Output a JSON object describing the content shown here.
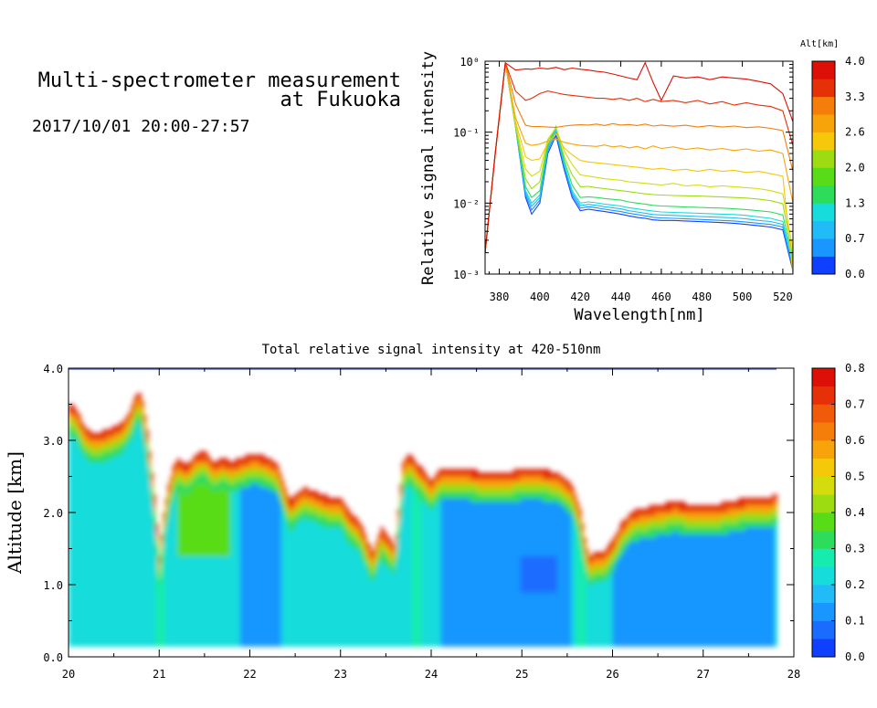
{
  "header": {
    "title_line1": "Multi-spectrometer measurement",
    "title_line2": "at Fukuoka",
    "datetime": "2017/10/01 20:00-27:57"
  },
  "colors": {
    "cmap": [
      "#1040ff",
      "#1a6cff",
      "#1996ff",
      "#21bcf7",
      "#17dcdc",
      "#16ecae",
      "#2edc5c",
      "#58dc18",
      "#9ddc10",
      "#d4dc0e",
      "#f5c80a",
      "#f7a40a",
      "#f57d0a",
      "#f05a0a",
      "#e63008",
      "#dc1006"
    ]
  },
  "chart_data": [
    {
      "type": "line",
      "xlabel": "Wavelength[nm]",
      "ylabel": "Relative signal intensity",
      "xlim": [
        373,
        525
      ],
      "ylim": [
        0.001,
        1
      ],
      "yscale": "log",
      "x_ticks": [
        380,
        400,
        420,
        440,
        460,
        480,
        500,
        520
      ],
      "y_tick_labels": [
        "10⁰",
        "10⁻¹",
        "10⁻²",
        "10⁻³"
      ],
      "colorbar": {
        "title": "Alt[km]",
        "tick_labels": [
          "4.0",
          "3.3",
          "2.6",
          "2.0",
          "1.3",
          "0.7",
          "0.0"
        ],
        "range": [
          0,
          4
        ]
      },
      "x": [
        373,
        378,
        383,
        388,
        393,
        396,
        400,
        404,
        408,
        412,
        416,
        420,
        424,
        428,
        432,
        436,
        440,
        444,
        448,
        452,
        456,
        460,
        466,
        472,
        478,
        484,
        490,
        496,
        502,
        508,
        514,
        520,
        525
      ],
      "series": [
        {
          "alt": 0.2,
          "values": [
            0.002,
            0.05,
            0.95,
            0.12,
            0.012,
            0.007,
            0.01,
            0.05,
            0.09,
            0.03,
            0.012,
            0.0078,
            0.0082,
            0.0079,
            0.0076,
            0.0073,
            0.007,
            0.0066,
            0.0063,
            0.0061,
            0.0058,
            0.0057,
            0.0057,
            0.0056,
            0.0055,
            0.0054,
            0.0053,
            0.0052,
            0.005,
            0.0048,
            0.0046,
            0.0042,
            0.0011
          ]
        },
        {
          "alt": 0.5,
          "values": [
            0.002,
            0.05,
            0.95,
            0.12,
            0.013,
            0.008,
            0.011,
            0.055,
            0.1,
            0.033,
            0.013,
            0.0085,
            0.0089,
            0.0086,
            0.0082,
            0.0079,
            0.0076,
            0.0072,
            0.0069,
            0.0066,
            0.0063,
            0.0062,
            0.0061,
            0.006,
            0.0059,
            0.0058,
            0.0057,
            0.0056,
            0.0054,
            0.0052,
            0.005,
            0.0046,
            0.0012
          ]
        },
        {
          "alt": 0.9,
          "values": [
            0.002,
            0.05,
            0.95,
            0.12,
            0.014,
            0.009,
            0.012,
            0.06,
            0.11,
            0.035,
            0.014,
            0.0092,
            0.0096,
            0.0093,
            0.0089,
            0.0086,
            0.0083,
            0.0078,
            0.0075,
            0.0072,
            0.0069,
            0.0068,
            0.0067,
            0.0066,
            0.0065,
            0.0064,
            0.0063,
            0.0062,
            0.006,
            0.0057,
            0.0055,
            0.005,
            0.0013
          ]
        },
        {
          "alt": 1.2,
          "values": [
            0.002,
            0.05,
            0.95,
            0.12,
            0.015,
            0.01,
            0.013,
            0.063,
            0.115,
            0.036,
            0.015,
            0.01,
            0.0104,
            0.0101,
            0.0097,
            0.0094,
            0.0091,
            0.0086,
            0.0083,
            0.008,
            0.0077,
            0.0075,
            0.0074,
            0.0073,
            0.0072,
            0.0071,
            0.007,
            0.0069,
            0.0067,
            0.0064,
            0.0061,
            0.0055,
            0.0014
          ]
        },
        {
          "alt": 1.6,
          "values": [
            0.002,
            0.05,
            0.95,
            0.12,
            0.017,
            0.012,
            0.015,
            0.066,
            0.12,
            0.04,
            0.018,
            0.012,
            0.0123,
            0.012,
            0.0116,
            0.0113,
            0.011,
            0.0104,
            0.01,
            0.0097,
            0.0093,
            0.0091,
            0.009,
            0.0088,
            0.0087,
            0.0086,
            0.0085,
            0.0083,
            0.0081,
            0.0078,
            0.0075,
            0.0068,
            0.0016
          ]
        },
        {
          "alt": 2.0,
          "values": [
            0.002,
            0.05,
            0.95,
            0.12,
            0.022,
            0.016,
            0.02,
            0.075,
            0.118,
            0.045,
            0.025,
            0.017,
            0.0172,
            0.0165,
            0.016,
            0.0155,
            0.015,
            0.0145,
            0.014,
            0.0135,
            0.0132,
            0.013,
            0.0128,
            0.0127,
            0.0126,
            0.0124,
            0.0122,
            0.012,
            0.0118,
            0.0114,
            0.0108,
            0.0098,
            0.0018
          ]
        },
        {
          "alt": 2.3,
          "values": [
            0.002,
            0.05,
            0.95,
            0.13,
            0.03,
            0.024,
            0.028,
            0.08,
            0.115,
            0.055,
            0.035,
            0.025,
            0.024,
            0.023,
            0.022,
            0.0215,
            0.021,
            0.02,
            0.0195,
            0.019,
            0.0185,
            0.018,
            0.019,
            0.0175,
            0.018,
            0.017,
            0.0175,
            0.017,
            0.0165,
            0.016,
            0.015,
            0.0135,
            0.0022
          ]
        },
        {
          "alt": 2.6,
          "values": [
            0.002,
            0.05,
            0.95,
            0.14,
            0.045,
            0.04,
            0.042,
            0.07,
            0.095,
            0.06,
            0.048,
            0.04,
            0.038,
            0.037,
            0.036,
            0.035,
            0.034,
            0.033,
            0.032,
            0.031,
            0.03,
            0.031,
            0.029,
            0.03,
            0.028,
            0.03,
            0.028,
            0.029,
            0.027,
            0.028,
            0.026,
            0.024,
            0.001
          ]
        },
        {
          "alt": 2.9,
          "values": [
            0.002,
            0.05,
            0.95,
            0.16,
            0.07,
            0.065,
            0.068,
            0.075,
            0.08,
            0.072,
            0.068,
            0.065,
            0.064,
            0.063,
            0.066,
            0.062,
            0.064,
            0.06,
            0.063,
            0.058,
            0.064,
            0.059,
            0.062,
            0.057,
            0.06,
            0.056,
            0.059,
            0.055,
            0.058,
            0.054,
            0.056,
            0.05,
            0.01
          ]
        },
        {
          "alt": 3.2,
          "values": [
            0.002,
            0.05,
            0.95,
            0.25,
            0.125,
            0.12,
            0.12,
            0.118,
            0.117,
            0.122,
            0.125,
            0.127,
            0.126,
            0.13,
            0.124,
            0.132,
            0.126,
            0.128,
            0.124,
            0.13,
            0.122,
            0.126,
            0.121,
            0.125,
            0.118,
            0.124,
            0.118,
            0.122,
            0.116,
            0.119,
            0.113,
            0.105,
            0.028
          ]
        },
        {
          "alt": 3.5,
          "values": [
            0.002,
            0.05,
            0.95,
            0.38,
            0.28,
            0.3,
            0.35,
            0.38,
            0.36,
            0.34,
            0.33,
            0.32,
            0.31,
            0.3,
            0.3,
            0.29,
            0.3,
            0.28,
            0.3,
            0.27,
            0.29,
            0.27,
            0.28,
            0.26,
            0.28,
            0.25,
            0.27,
            0.24,
            0.26,
            0.24,
            0.23,
            0.2,
            0.065
          ]
        },
        {
          "alt": 3.9,
          "values": [
            0.002,
            0.05,
            0.95,
            0.75,
            0.78,
            0.77,
            0.8,
            0.78,
            0.82,
            0.76,
            0.8,
            0.77,
            0.75,
            0.72,
            0.7,
            0.66,
            0.62,
            0.58,
            0.55,
            0.95,
            0.5,
            0.28,
            0.62,
            0.58,
            0.6,
            0.55,
            0.6,
            0.58,
            0.56,
            0.52,
            0.48,
            0.35,
            0.14
          ]
        }
      ]
    },
    {
      "type": "heatmap",
      "title": "Total relative signal intensity at 420-510nm",
      "ylabel": "Altitude [km]",
      "xlim": [
        20,
        28
      ],
      "ylim": [
        0,
        4
      ],
      "x_ticks": [
        "20",
        "21",
        "22",
        "23",
        "24",
        "25",
        "26",
        "27",
        "28"
      ],
      "y_ticks": [
        "0.0",
        "1.0",
        "2.0",
        "3.0",
        "4.0"
      ],
      "colorbar": {
        "range": [
          0,
          0.8
        ],
        "tick_labels": [
          "0.8",
          "0.7",
          "0.6",
          "0.5",
          "0.4",
          "0.3",
          "0.2",
          "0.1",
          "0.0"
        ]
      },
      "data_alt_range": [
        0.15,
        4.0
      ],
      "cloud_top_km": {
        "time": [
          20.0,
          20.08,
          20.15,
          20.2,
          20.3,
          20.45,
          20.6,
          20.7,
          20.75,
          20.8,
          20.85,
          20.9,
          20.95,
          21.0,
          21.05,
          21.1,
          21.15,
          21.2,
          21.3,
          21.4,
          21.5,
          21.6,
          21.7,
          21.8,
          21.9,
          22.0,
          22.1,
          22.2,
          22.3,
          22.4,
          22.45,
          22.5,
          22.6,
          22.7,
          22.8,
          22.9,
          23.0,
          23.1,
          23.2,
          23.3,
          23.35,
          23.4,
          23.45,
          23.5,
          23.6,
          23.65,
          23.7,
          23.75,
          23.8,
          23.9,
          24.0,
          24.1,
          24.2,
          24.4,
          24.6,
          24.8,
          25.0,
          25.2,
          25.4,
          25.55,
          25.65,
          25.7,
          25.75,
          25.8,
          25.9,
          26.0,
          26.1,
          26.2,
          26.3,
          26.5,
          26.7,
          26.9,
          27.1,
          27.3,
          27.5,
          27.7,
          27.8
        ],
        "top": [
          3.5,
          3.45,
          3.25,
          3.15,
          3.1,
          3.15,
          3.25,
          3.45,
          3.65,
          3.65,
          3.3,
          2.8,
          2.2,
          1.4,
          2.0,
          2.35,
          2.6,
          2.75,
          2.65,
          2.8,
          2.85,
          2.7,
          2.75,
          2.7,
          2.75,
          2.8,
          2.8,
          2.75,
          2.7,
          2.3,
          2.15,
          2.25,
          2.35,
          2.3,
          2.25,
          2.2,
          2.2,
          2.0,
          1.9,
          1.6,
          1.45,
          1.6,
          1.8,
          1.7,
          1.55,
          2.2,
          2.75,
          2.8,
          2.75,
          2.6,
          2.45,
          2.6,
          2.6,
          2.6,
          2.55,
          2.55,
          2.6,
          2.6,
          2.55,
          2.4,
          2.0,
          1.6,
          1.4,
          1.45,
          1.45,
          1.6,
          1.85,
          2.0,
          2.05,
          2.1,
          2.15,
          2.1,
          2.1,
          2.15,
          2.2,
          2.2,
          2.25
        ]
      },
      "clear_columns": [
        21.02,
        23.85,
        25.65
      ],
      "low_zones": [
        [
          21.9,
          22.35
        ],
        [
          24.1,
          25.55
        ],
        [
          26.0,
          27.8
        ]
      ]
    }
  ]
}
